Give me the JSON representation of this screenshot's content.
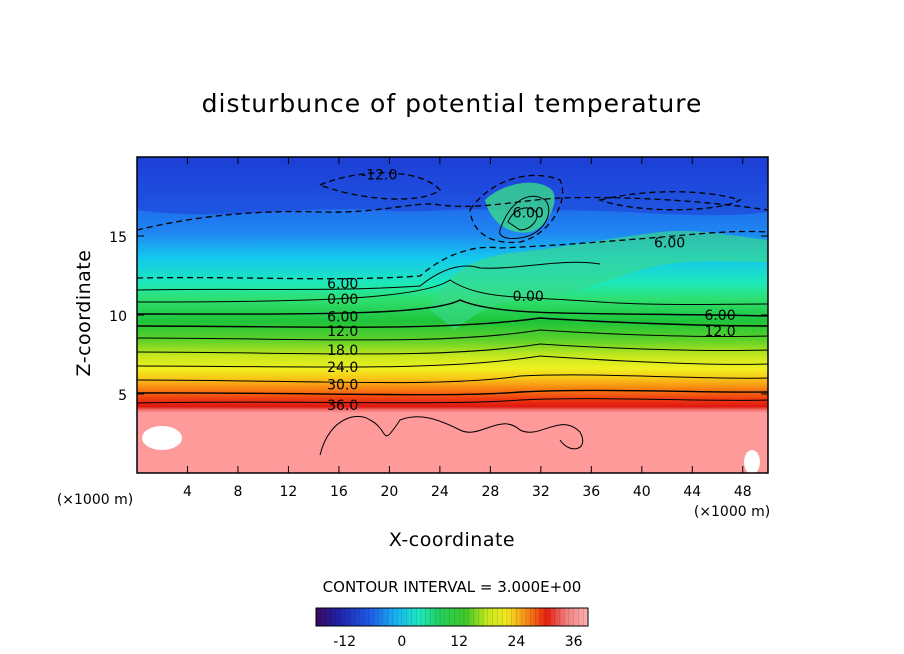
{
  "chart_data": {
    "type": "heatmap",
    "title": "disturbunce of potential temperature",
    "xlabel": "X-coordinate",
    "ylabel": "Z-coordinate",
    "x_unit": "(×1000 m)",
    "y_unit": "(×1000 m)",
    "xlim": [
      0,
      50
    ],
    "ylim": [
      0,
      20
    ],
    "x_ticks": [
      4,
      8,
      12,
      16,
      20,
      24,
      28,
      32,
      36,
      40,
      44,
      48
    ],
    "y_ticks": [
      5,
      10,
      15
    ],
    "x_tick_labels": [
      "4",
      "8",
      "12",
      "16",
      "20",
      "24",
      "28",
      "32",
      "36",
      "40",
      "44",
      "48"
    ],
    "y_tick_labels": [
      "5",
      "10",
      "15"
    ],
    "contour_interval_label": "CONTOUR INTERVAL = 3.000E+00",
    "contour_interval": 3.0,
    "colorbar": {
      "range": [
        -18,
        39
      ],
      "ticks": [
        -12,
        0,
        12,
        24,
        36
      ],
      "tick_labels": [
        "-12",
        "0",
        "12",
        "24",
        "36"
      ]
    },
    "contour_labels": [
      {
        "text": "-12.0",
        "x": 19.2,
        "z": 18.9
      },
      {
        "text": "6.00",
        "x": 31.0,
        "z": 16.5
      },
      {
        "text": "6.00",
        "x": 42.2,
        "z": 14.6
      },
      {
        "text": "6.00",
        "x": 16.3,
        "z": 12.0
      },
      {
        "text": "0.00",
        "x": 16.3,
        "z": 11.0
      },
      {
        "text": "0.00",
        "x": 31.0,
        "z": 11.2
      },
      {
        "text": "6.00",
        "x": 16.3,
        "z": 9.9
      },
      {
        "text": "6.00",
        "x": 46.2,
        "z": 10.0
      },
      {
        "text": "12.0",
        "x": 16.3,
        "z": 9.0
      },
      {
        "text": "12.0",
        "x": 46.2,
        "z": 9.0
      },
      {
        "text": "18.0",
        "x": 16.3,
        "z": 7.8
      },
      {
        "text": "24.0",
        "x": 16.3,
        "z": 6.7
      },
      {
        "text": "30.0",
        "x": 16.3,
        "z": 5.6
      },
      {
        "text": "36.0",
        "x": 16.3,
        "z": 4.3
      }
    ]
  },
  "colors": {
    "axis": "#000000",
    "low_blue": "#1e4fe0",
    "high_pink": "#ff9a9a",
    "white_patch": "#ffffff"
  }
}
